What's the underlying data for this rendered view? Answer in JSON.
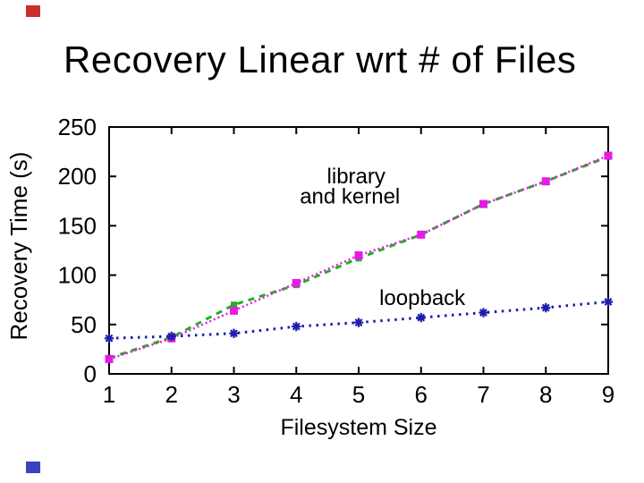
{
  "slide": {
    "title": "Recovery Linear wrt # of Files",
    "decor": {
      "top_left_mark_color": "#c8302c",
      "bottom_left_mark_color": "#3a43c0"
    }
  },
  "chart_data": {
    "type": "line",
    "title": "",
    "xlabel": "Filesystem Size",
    "ylabel": "Recovery Time (s)",
    "x": [
      1,
      2,
      3,
      4,
      5,
      6,
      7,
      8,
      9
    ],
    "xlim": [
      1,
      9
    ],
    "ylim": [
      0,
      250
    ],
    "xticks": [
      1,
      2,
      3,
      4,
      5,
      6,
      7,
      8,
      9
    ],
    "yticks": [
      0,
      50,
      100,
      150,
      200,
      250
    ],
    "grid": false,
    "legend_position": "none",
    "frame_color": "#000000",
    "annotations": [
      {
        "text": "library",
        "x": 4.96,
        "y": 200
      },
      {
        "text": "and kernel",
        "x": 4.86,
        "y": 180
      },
      {
        "text": "loopback",
        "x": 6.02,
        "y": 77
      }
    ],
    "series": [
      {
        "name": "kernel",
        "color": "#1db41d",
        "line_style": "dashed",
        "line_width": 3,
        "marker": "square",
        "values": [
          16,
          37,
          70,
          90,
          117,
          141,
          172,
          195,
          220
        ]
      },
      {
        "name": "library",
        "color": "#e61ae6",
        "line_style": "fine-dotted",
        "line_width": 2.5,
        "marker": "filled-square",
        "values": [
          15,
          36,
          64,
          92,
          120,
          141,
          172,
          195,
          221
        ]
      },
      {
        "name": "loopback",
        "color": "#1d1dae",
        "line_style": "dotted",
        "line_width": 3,
        "marker": "star",
        "values": [
          36,
          38,
          41,
          48,
          52,
          57,
          62,
          67,
          73
        ]
      }
    ]
  }
}
